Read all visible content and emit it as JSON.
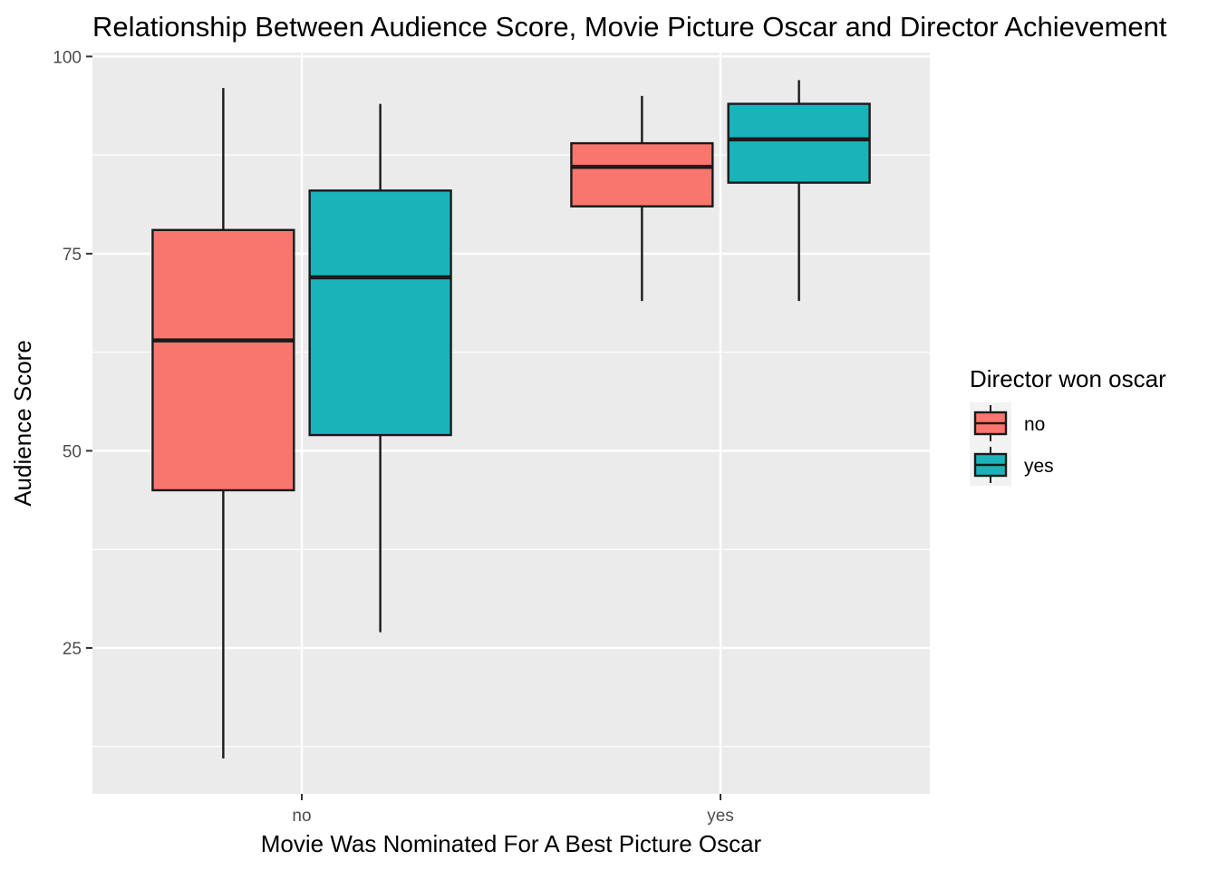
{
  "chart_data": {
    "type": "boxplot",
    "title": "Relationship Between Audience Score, Movie Picture Oscar and Director Achievement",
    "xlabel": "Movie Was Nominated For A Best Picture Oscar",
    "ylabel": "Audience Score",
    "categories": [
      "no",
      "yes"
    ],
    "ylim": [
      6.5,
      100.5
    ],
    "yticks": [
      25,
      50,
      75,
      100
    ],
    "grid": true,
    "legend": {
      "title": "Director won oscar",
      "position": "right"
    },
    "series": [
      {
        "name": "no",
        "color": "#F8766D",
        "boxes": [
          {
            "min": 11,
            "q1": 45,
            "median": 64,
            "q3": 78,
            "max": 96
          },
          {
            "min": 69,
            "q1": 81,
            "median": 86,
            "q3": 89,
            "max": 95
          }
        ]
      },
      {
        "name": "yes",
        "color": "#19B4B9",
        "boxes": [
          {
            "min": 27,
            "q1": 52,
            "median": 72,
            "q3": 83,
            "max": 94
          },
          {
            "min": 69,
            "q1": 84,
            "median": 89.5,
            "q3": 94,
            "max": 97
          }
        ]
      }
    ]
  }
}
